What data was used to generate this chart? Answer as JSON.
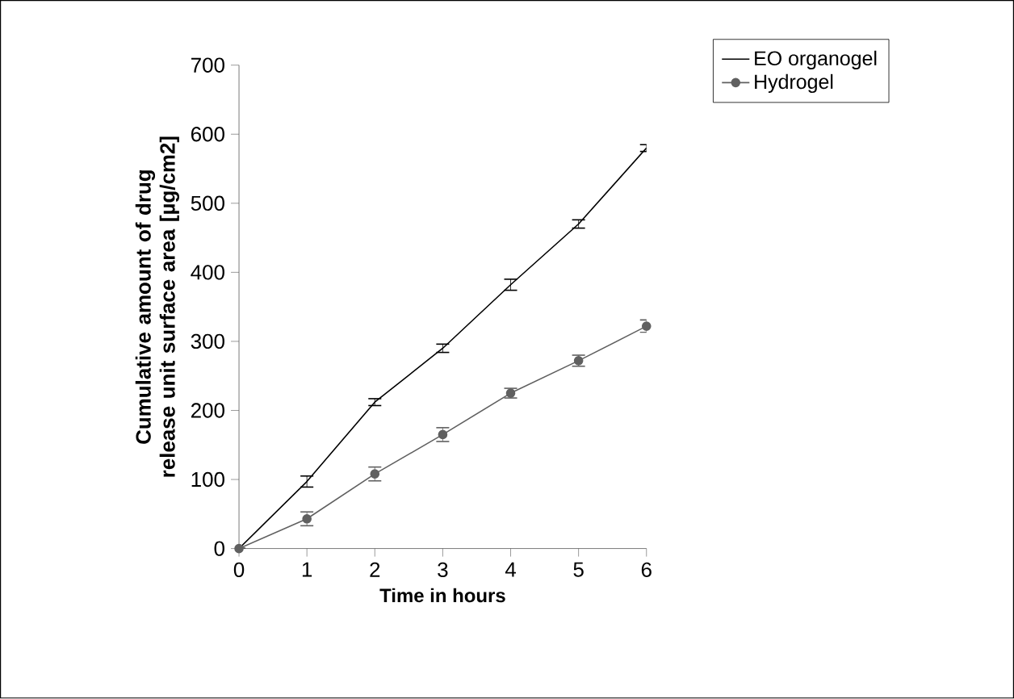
{
  "chart_data": {
    "type": "line",
    "xlabel": "Time in hours",
    "ylabel": "Cumulative amount of drug release unit surface area [µg/cm2]",
    "x": [
      0,
      1,
      2,
      3,
      4,
      5,
      6
    ],
    "series": [
      {
        "name": "EO organogel",
        "color": "#000000",
        "marker": "none",
        "values": [
          0,
          97,
          212,
          290,
          382,
          470,
          580
        ],
        "errors": [
          0,
          8,
          5,
          6,
          8,
          6,
          5
        ]
      },
      {
        "name": "Hydrogel",
        "color": "#606060",
        "marker": "circle",
        "values": [
          0,
          43,
          108,
          165,
          225,
          272,
          322
        ],
        "errors": [
          0,
          10,
          10,
          10,
          7,
          8,
          9
        ]
      }
    ],
    "xlim": [
      0,
      6
    ],
    "xticks": [
      0,
      1,
      2,
      3,
      4,
      5,
      6
    ],
    "ylim": [
      0,
      700
    ],
    "yticks": [
      0,
      100,
      200,
      300,
      400,
      500,
      600,
      700
    ],
    "grid": false,
    "legend": "top right",
    "line_style": "solid"
  }
}
